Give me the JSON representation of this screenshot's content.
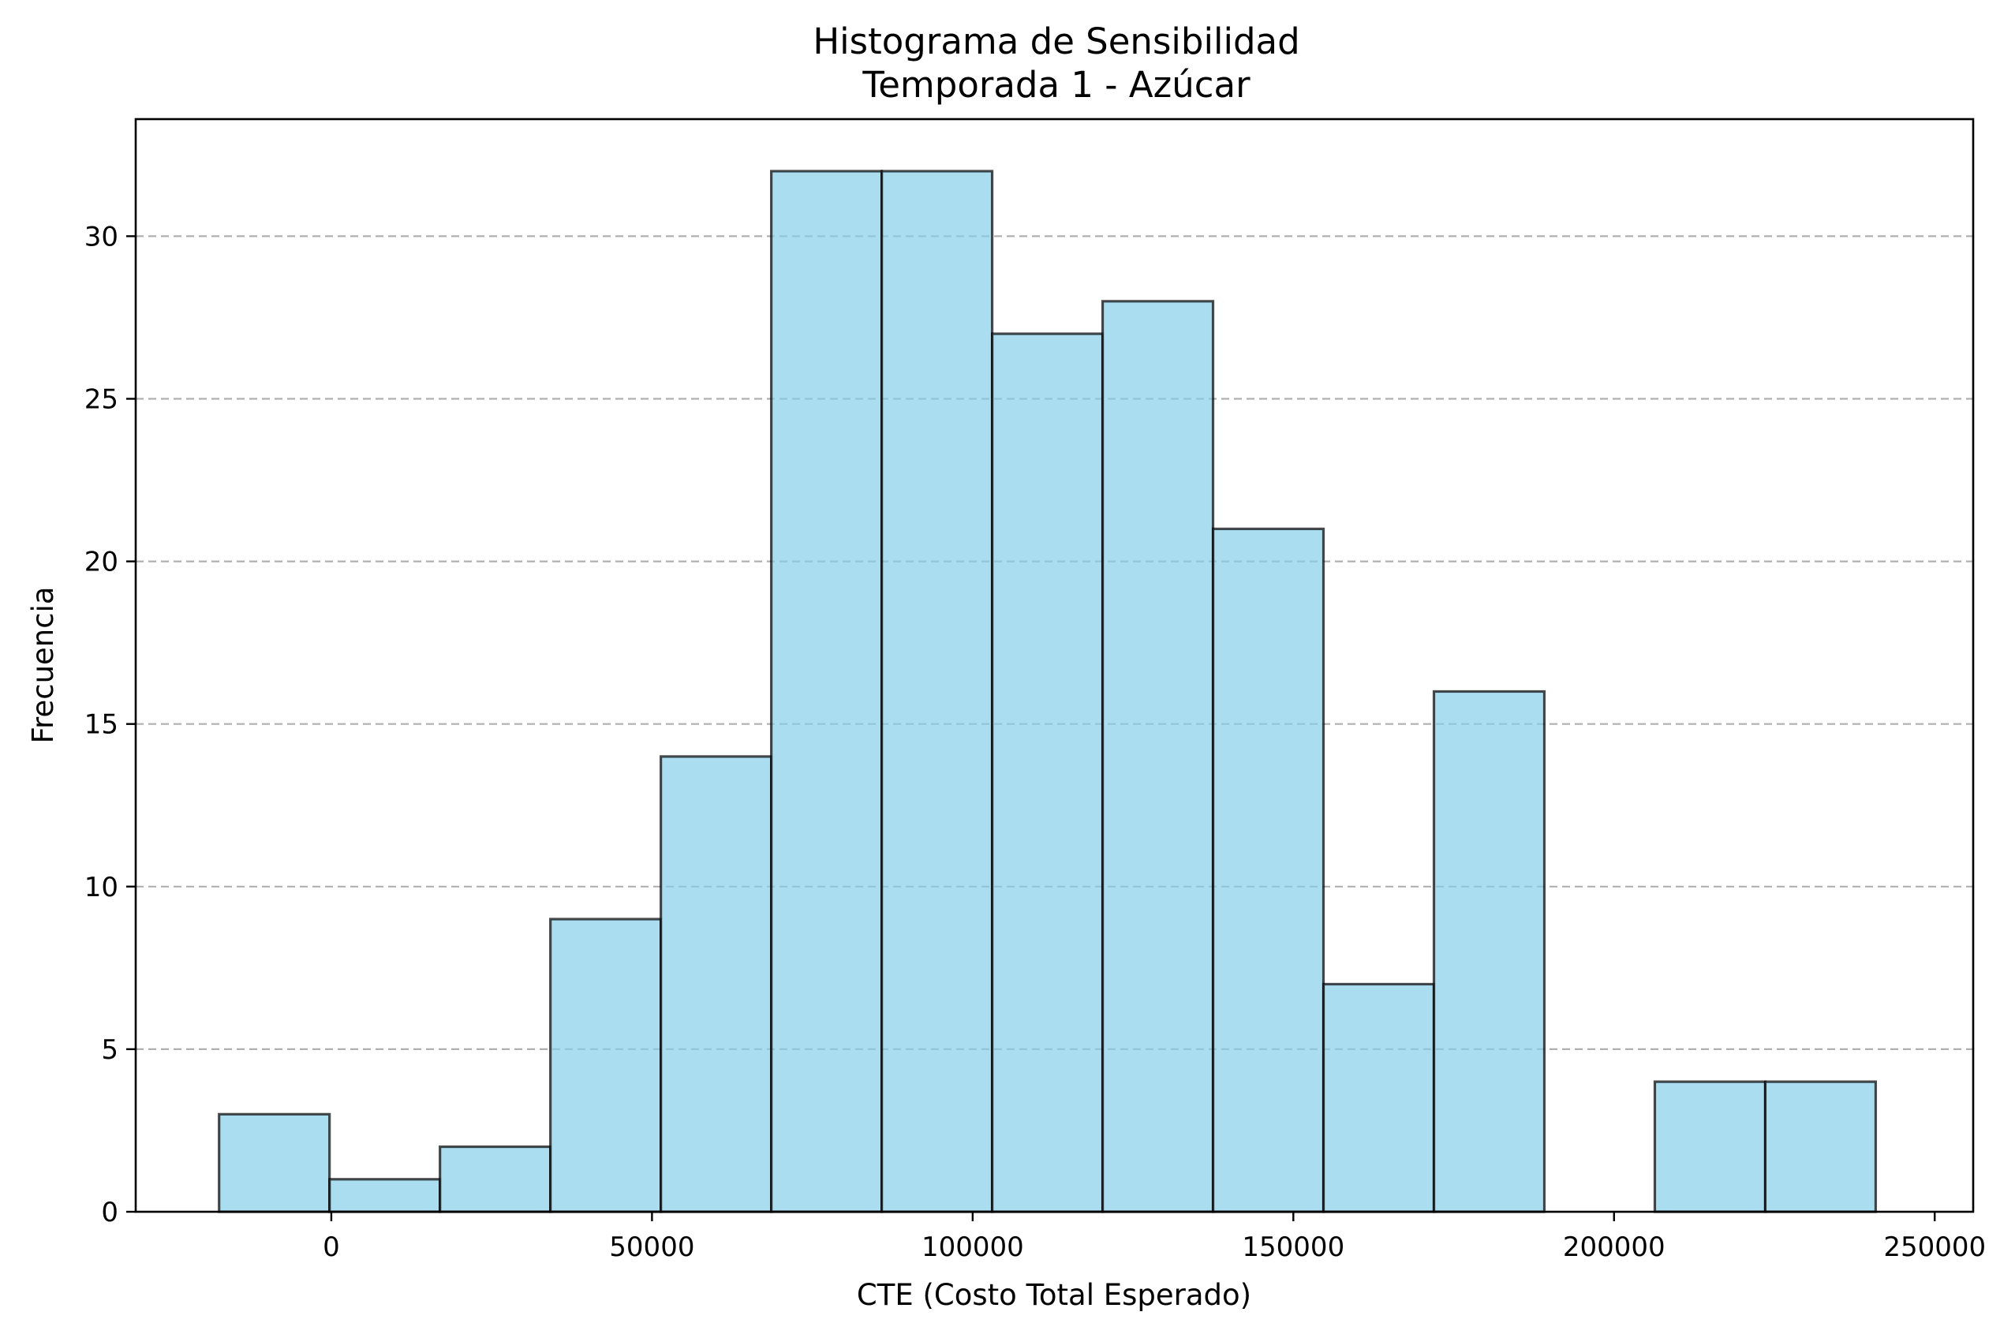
{
  "chart_data": {
    "type": "bar",
    "title": "Histograma de Sensibilidad",
    "subtitle": "Temporada 1 - Azúcar",
    "xlabel": "CTE (Costo Total Esperado)",
    "ylabel": "Frecuencia",
    "bin_edges": [
      -17500,
      -280,
      16940,
      34160,
      51380,
      68600,
      85820,
      103040,
      120260,
      137480,
      154700,
      171920,
      189140,
      206360,
      223580,
      240800
    ],
    "values": [
      3,
      1,
      2,
      9,
      14,
      32,
      32,
      27,
      28,
      21,
      7,
      16,
      0,
      4,
      4
    ],
    "xlim": [
      -30500,
      256000
    ],
    "ylim": [
      0,
      33.6
    ],
    "x_ticks": [
      0,
      50000,
      100000,
      150000,
      200000,
      250000
    ],
    "x_tick_labels": [
      "0",
      "50000",
      "100000",
      "150000",
      "200000",
      "250000"
    ],
    "y_ticks": [
      0,
      5,
      10,
      15,
      20,
      25,
      30
    ],
    "y_tick_labels": [
      "0",
      "5",
      "10",
      "15",
      "20",
      "25",
      "30"
    ],
    "grid": "y-dashed",
    "colors": {
      "bar_fill": "#87ceeb",
      "bar_fill_opacity": 0.7,
      "bar_edge": "#000000",
      "grid": "#b0b0b0"
    }
  }
}
